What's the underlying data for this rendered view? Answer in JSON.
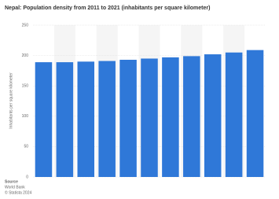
{
  "chart_data": {
    "type": "bar",
    "title": "Nepal: Population density from 2011 to 2021 (inhabitants per square kilometer)",
    "y_label": "Inhabitants per square kilometer",
    "categories": [
      null,
      null,
      null,
      null,
      null,
      null,
      null,
      null,
      null,
      null,
      null
    ],
    "values": [
      189,
      189,
      190,
      191,
      193,
      195,
      197,
      199,
      202,
      205,
      209
    ],
    "color": "#2f78d8",
    "ylim": [
      0,
      250
    ],
    "yticks": [
      0,
      50,
      100,
      150,
      200,
      250
    ],
    "grid": true,
    "source_heading": "Source",
    "source": "World Bank",
    "copyright": "© Statista 2024"
  }
}
